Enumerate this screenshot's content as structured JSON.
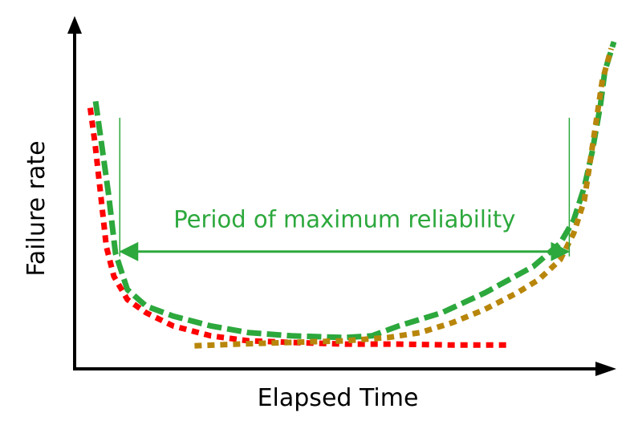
{
  "chart_data": {
    "type": "line",
    "title": "",
    "xlabel": "Elapsed Time",
    "ylabel": "Failure rate",
    "grid": false,
    "legend": "none",
    "xlim": [
      0,
      100
    ],
    "ylim": [
      0,
      100
    ],
    "colors": {
      "axis": "#000000",
      "annotation": "#2ca83c"
    },
    "series": [
      {
        "color": "#ff0000",
        "style": "dotted",
        "points": [
          {
            "x": 2.6,
            "y": 79
          },
          {
            "x": 3.5,
            "y": 68
          },
          {
            "x": 4.6,
            "y": 52
          },
          {
            "x": 5.6,
            "y": 37
          },
          {
            "x": 7,
            "y": 28
          },
          {
            "x": 9.5,
            "y": 21
          },
          {
            "x": 13,
            "y": 17
          },
          {
            "x": 18,
            "y": 13
          },
          {
            "x": 25,
            "y": 10
          },
          {
            "x": 32,
            "y": 8.5
          },
          {
            "x": 40,
            "y": 8
          },
          {
            "x": 50,
            "y": 7.5
          },
          {
            "x": 60,
            "y": 7.5
          },
          {
            "x": 70,
            "y": 7.2
          },
          {
            "x": 80,
            "y": 7.2
          }
        ]
      },
      {
        "color": "#2ca83c",
        "style": "dashed",
        "points": [
          {
            "x": 3.6,
            "y": 81
          },
          {
            "x": 4.8,
            "y": 67
          },
          {
            "x": 6,
            "y": 53
          },
          {
            "x": 7.3,
            "y": 35
          },
          {
            "x": 9.5,
            "y": 24
          },
          {
            "x": 13,
            "y": 19
          },
          {
            "x": 18,
            "y": 16
          },
          {
            "x": 25,
            "y": 13
          },
          {
            "x": 32,
            "y": 11
          },
          {
            "x": 40,
            "y": 10
          },
          {
            "x": 50,
            "y": 9.5
          },
          {
            "x": 55,
            "y": 10
          },
          {
            "x": 60,
            "y": 13
          },
          {
            "x": 68,
            "y": 17
          },
          {
            "x": 76,
            "y": 23
          },
          {
            "x": 85,
            "y": 31
          },
          {
            "x": 90,
            "y": 38
          },
          {
            "x": 92.5,
            "y": 45
          },
          {
            "x": 94.5,
            "y": 55
          },
          {
            "x": 96,
            "y": 66
          },
          {
            "x": 97.5,
            "y": 80
          },
          {
            "x": 98.3,
            "y": 90
          },
          {
            "x": 100,
            "y": 99
          }
        ]
      },
      {
        "color": "#b8860b",
        "style": "dotted",
        "points": [
          {
            "x": 22,
            "y": 7
          },
          {
            "x": 30,
            "y": 7.5
          },
          {
            "x": 40,
            "y": 8
          },
          {
            "x": 50,
            "y": 8.5
          },
          {
            "x": 58,
            "y": 9.5
          },
          {
            "x": 64,
            "y": 11
          },
          {
            "x": 70,
            "y": 14
          },
          {
            "x": 76,
            "y": 18
          },
          {
            "x": 82,
            "y": 23
          },
          {
            "x": 86,
            "y": 27
          },
          {
            "x": 90,
            "y": 33
          },
          {
            "x": 92.5,
            "y": 41
          },
          {
            "x": 94.5,
            "y": 51
          },
          {
            "x": 95.5,
            "y": 62
          },
          {
            "x": 96.8,
            "y": 76
          },
          {
            "x": 97.8,
            "y": 87
          },
          {
            "x": 99.5,
            "y": 97
          }
        ]
      }
    ],
    "annotation": {
      "text": "Period of maximum reliability",
      "x_start": 8.1,
      "x_end": 91.7,
      "arrow_y": 35.5,
      "bracket_top_y": 76
    }
  }
}
